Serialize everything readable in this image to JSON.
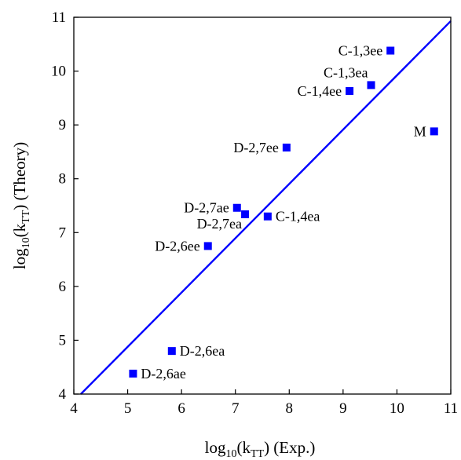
{
  "chart_data": {
    "type": "scatter",
    "title": "",
    "xlabel": {
      "base": "log",
      "sub1": "10",
      "mid": "(k",
      "sub2": "TT",
      "tail": ") (Exp.)"
    },
    "ylabel": {
      "base": "log",
      "sub1": "10",
      "mid": "(k",
      "sub2": "TT",
      "tail": ") (Theory)"
    },
    "xlim": [
      4,
      11
    ],
    "ylim": [
      4,
      11
    ],
    "xticks": [
      "4",
      "5",
      "6",
      "7",
      "8",
      "9",
      "10",
      "11"
    ],
    "yticks": [
      "4",
      "5",
      "6",
      "7",
      "8",
      "9",
      "10",
      "11"
    ],
    "grid": false,
    "marker_color": "#0000ff",
    "line_color": "#0000ff",
    "reference_line": {
      "x": [
        4.13,
        11
      ],
      "y": [
        4,
        10.93
      ]
    },
    "points": [
      {
        "label": "C-1,3ee",
        "x": 9.88,
        "y": 10.38,
        "label_side": "left"
      },
      {
        "label": "C-1,3ea",
        "x": 9.52,
        "y": 9.74,
        "label_side": "above-left"
      },
      {
        "label": "C-1,4ee",
        "x": 9.12,
        "y": 9.63,
        "label_side": "left"
      },
      {
        "label": "M",
        "x": 10.69,
        "y": 8.88,
        "label_side": "left"
      },
      {
        "label": "D-2,7ee",
        "x": 7.95,
        "y": 8.58,
        "label_side": "left"
      },
      {
        "label": "D-2,7ae",
        "x": 7.03,
        "y": 7.46,
        "label_side": "left"
      },
      {
        "label": "D-2,7ea",
        "x": 7.18,
        "y": 7.34,
        "label_side": "below-left"
      },
      {
        "label": "C-1,4ea",
        "x": 7.6,
        "y": 7.3,
        "label_side": "right"
      },
      {
        "label": "D-2,6ee",
        "x": 6.49,
        "y": 6.75,
        "label_side": "left"
      },
      {
        "label": "D-2,6ea",
        "x": 5.82,
        "y": 4.8,
        "label_side": "right"
      },
      {
        "label": "D-2,6ae",
        "x": 5.1,
        "y": 4.38,
        "label_side": "right"
      }
    ]
  }
}
